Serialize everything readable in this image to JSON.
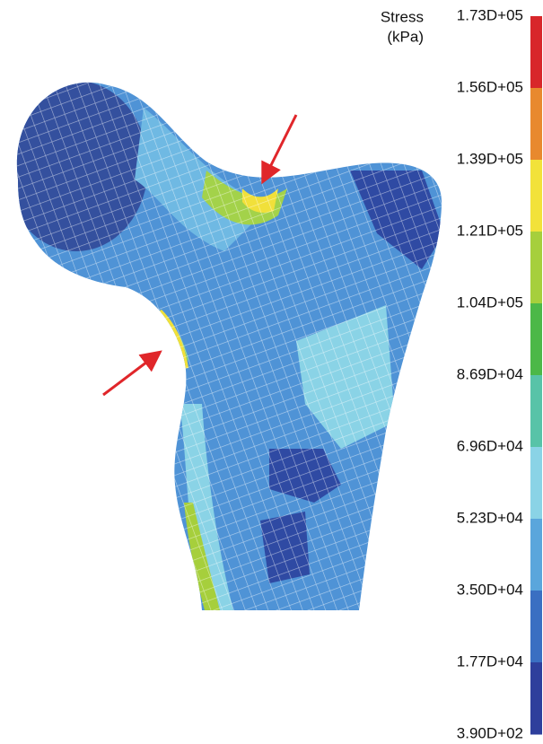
{
  "legend": {
    "title": [
      "Stress",
      "(kPa)"
    ],
    "labels": [
      "1.73D+05",
      "1.56D+05",
      "1.39D+05",
      "1.21D+05",
      "1.04D+05",
      "8.69D+04",
      "6.96D+04",
      "5.23D+04",
      "3.50D+04",
      "1.77D+04",
      "3.90D+02"
    ],
    "colors": [
      "#d8262a",
      "#e8892e",
      "#f2e23a",
      "#a6cf3c",
      "#4cb848",
      "#58c3a8",
      "#8ad3e6",
      "#5aa6dc",
      "#3a6fc2",
      "#2e3f9c"
    ]
  }
}
